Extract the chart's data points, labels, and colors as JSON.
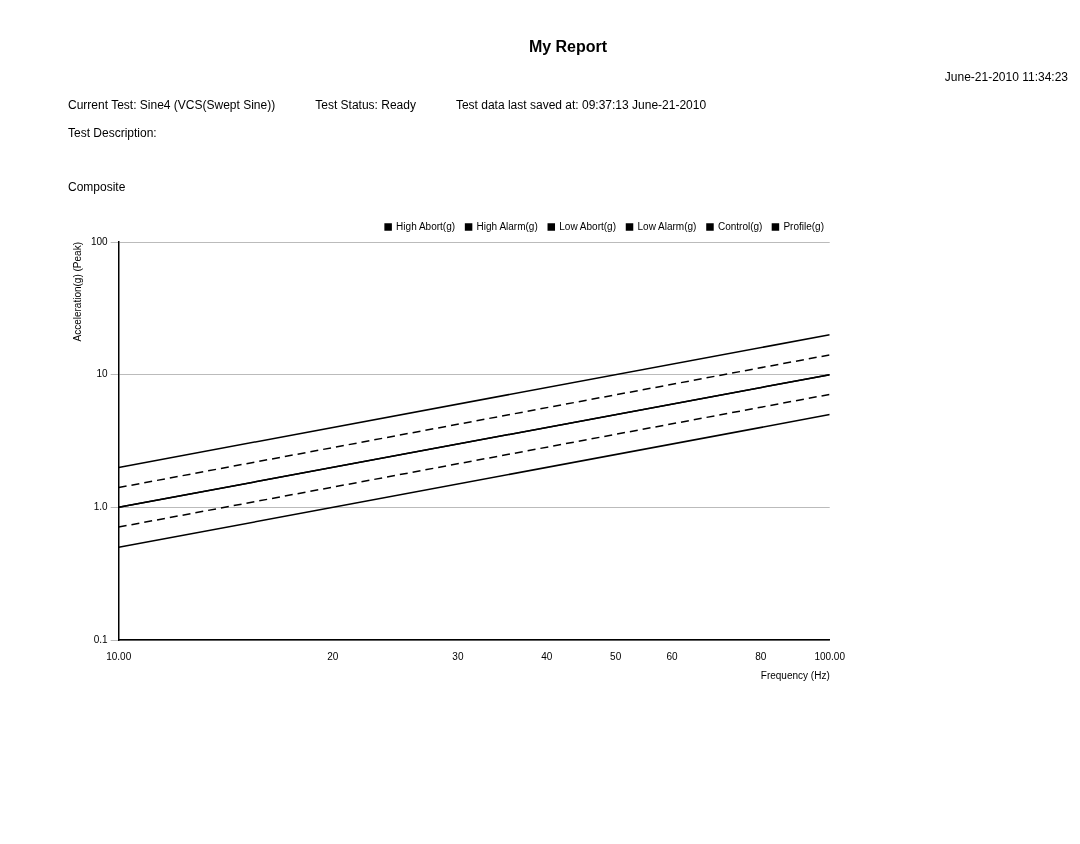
{
  "chart_data": {
    "type": "line",
    "title": "My Report",
    "annotations": [
      "June-21-2010 11:34:23",
      "Current Test:  Sine4 (VCS(Swept Sine))",
      "Test Status:  Ready",
      "Test data last saved at:  09:37:13 June-21-2010",
      "Test Description:",
      "Composite"
    ],
    "ylabel": "Acceleration(g) (Peak)",
    "xlabel": "Frequency (Hz)",
    "x": [
      10,
      100
    ],
    "series": [
      {
        "name": "High Abort(g)",
        "color": "#000000",
        "line_style": "solid",
        "values": [
          2,
          20
        ]
      },
      {
        "name": "High Alarm(g)",
        "color": "#000000",
        "line_style": "dashed",
        "values": [
          1.41,
          14.1
        ]
      },
      {
        "name": "Low Abort(g)",
        "color": "#000000",
        "line_style": "solid",
        "values": [
          0.5,
          5
        ]
      },
      {
        "name": "Low Alarm(g)",
        "color": "#000000",
        "line_style": "dashed",
        "values": [
          0.71,
          7.1
        ]
      },
      {
        "name": "Control(g)",
        "color": "#000000",
        "line_style": "solid",
        "values": [
          1,
          10
        ]
      },
      {
        "name": "Profile(g)",
        "color": "#000000",
        "line_style": "solid",
        "values": [
          1,
          10
        ]
      }
    ],
    "log": "xy",
    "xlim": [
      10,
      100
    ],
    "ylim": [
      0.1,
      100
    ],
    "xticks": [
      {
        "value": 10,
        "label": "10.00"
      },
      20,
      30,
      40,
      50,
      60,
      80,
      {
        "value": 100,
        "label": "100.00"
      }
    ],
    "yticks": [
      0.1,
      {
        "value": 1,
        "label": "1.0"
      },
      10,
      100
    ],
    "grid": "y",
    "legend": "top right"
  }
}
